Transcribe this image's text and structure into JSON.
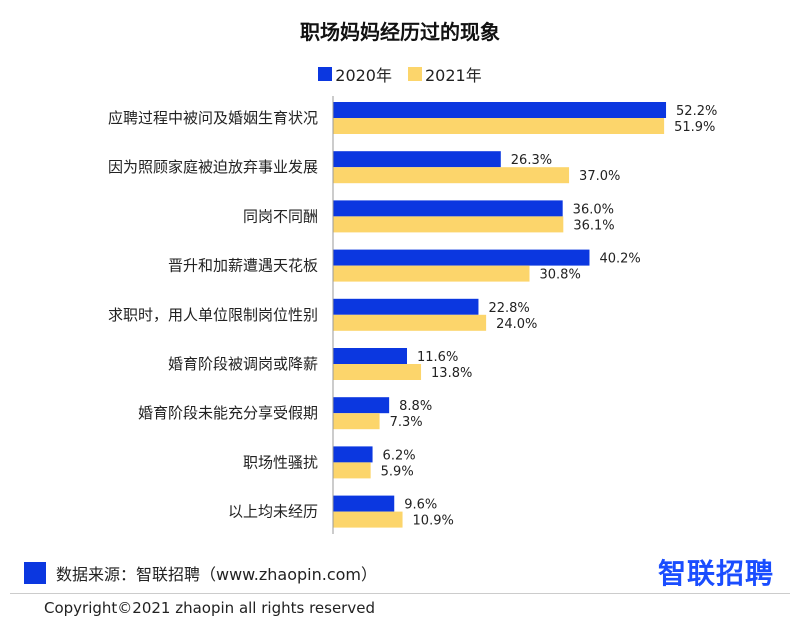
{
  "chart_data": {
    "type": "bar",
    "orientation": "horizontal",
    "title": "职场妈妈经历过的现象",
    "categories": [
      "应聘过程中被问及婚姻生育状况",
      "因为照顾家庭被迫放弃事业发展",
      "同岗不同酬",
      "晋升和加薪遭遇天花板",
      "求职时，用人单位限制岗位性别",
      "婚育阶段被调岗或降薪",
      "婚育阶段未能充分享受假期",
      "职场性骚扰",
      "以上均未经历"
    ],
    "series": [
      {
        "name": "2020年",
        "color": "#0b37e0",
        "values": [
          52.2,
          26.3,
          36.0,
          40.2,
          22.8,
          11.6,
          8.8,
          6.2,
          9.6
        ],
        "labels": [
          "52.2%",
          "26.3%",
          "36.0%",
          "40.2%",
          "22.8%",
          "11.6%",
          "8.8%",
          "6.2%",
          "9.6%"
        ]
      },
      {
        "name": "2021年",
        "color": "#fcd56b",
        "values": [
          51.9,
          37.0,
          36.1,
          30.8,
          24.0,
          13.8,
          7.3,
          5.9,
          10.9
        ],
        "labels": [
          "51.9%",
          "37.0%",
          "36.1%",
          "30.8%",
          "24.0%",
          "13.8%",
          "7.3%",
          "5.9%",
          "10.9%"
        ]
      }
    ],
    "xlim": [
      0,
      60
    ],
    "grid": false,
    "legend": "top-center"
  },
  "footer": {
    "source": "数据来源：智联招聘（www.zhaopin.com）",
    "logo": "智联招聘",
    "copyright": "Copyright©2021 zhaopin all rights reserved"
  }
}
